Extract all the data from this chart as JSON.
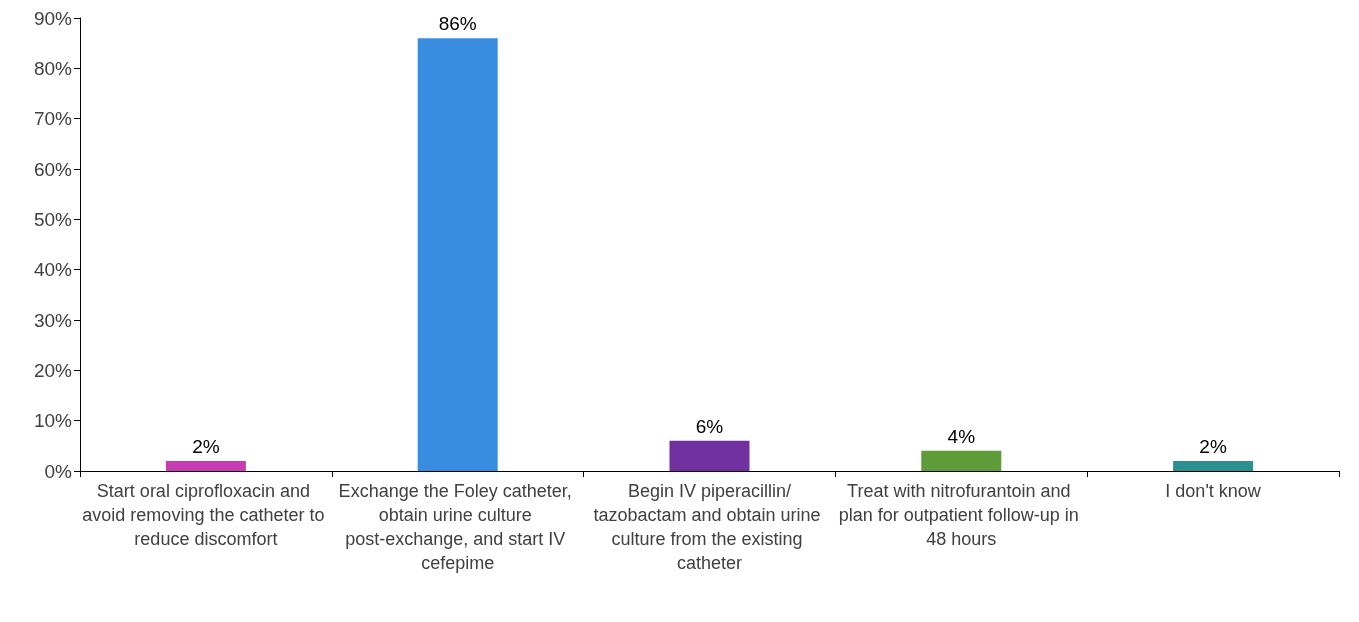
{
  "chart_data": {
    "type": "bar",
    "categories": [
      "Start oral ciprofloxacin and avoid removing the catheter to reduce discomfort",
      "Exchange the Foley catheter, obtain urine culture post-exchange, and start IV cefepime",
      "Begin IV piperacillin/tazobactam and obtain urine culture from the existing catheter",
      "Treat with nitrofurantoin and plan for outpatient follow-up in 48 hours",
      "I don't know"
    ],
    "values": [
      2,
      86,
      6,
      4,
      2
    ],
    "colors": [
      "#c73cb3",
      "#388de0",
      "#7030a0",
      "#5e9c3a",
      "#2b8f8f"
    ],
    "value_labels": [
      "2%",
      "86%",
      "6%",
      "4%",
      "2%"
    ],
    "ylim": [
      0,
      90
    ],
    "yticks": [
      {
        "value": 0,
        "label": "0%"
      },
      {
        "value": 10,
        "label": "10%"
      },
      {
        "value": 20,
        "label": "20%"
      },
      {
        "value": 30,
        "label": "30%"
      },
      {
        "value": 40,
        "label": "40%"
      },
      {
        "value": 50,
        "label": "50%"
      },
      {
        "value": 60,
        "label": "60%"
      },
      {
        "value": 70,
        "label": "70%"
      },
      {
        "value": 80,
        "label": "80%"
      },
      {
        "value": 90,
        "label": "90%"
      }
    ],
    "grid": false
  }
}
